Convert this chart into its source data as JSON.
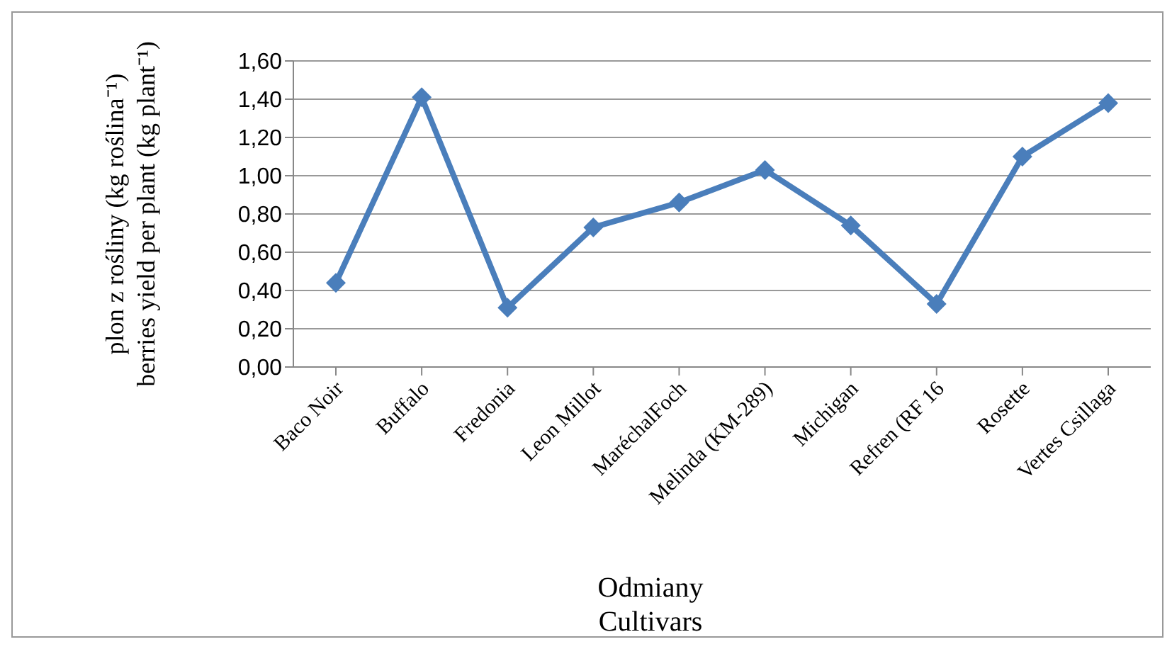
{
  "chart_data": {
    "type": "line",
    "categories": [
      "Baco Noir",
      "Buffalo",
      "Fredonia",
      "Leon Millot",
      "MaréchalFoch",
      "Melinda (KM-289)",
      "Michigan",
      "Refren (RF 16",
      "Rosette",
      "Vertes Csillaga"
    ],
    "series": [
      {
        "color": "#4a7ebb",
        "values": [
          0.44,
          1.41,
          0.31,
          0.73,
          0.86,
          1.03,
          0.74,
          0.33,
          1.1,
          1.38
        ]
      }
    ],
    "xlabel": "Odmiany\nCultivars",
    "ylabel": "plon z rośliny (kg roślina⁻¹)\nberries yield per plant (kg plant⁻¹)",
    "ylim": [
      0,
      1.6
    ],
    "yticks": [
      {
        "value": 0,
        "label": "0,00"
      },
      {
        "value": 0.2,
        "label": "0,20"
      },
      {
        "value": 0.4,
        "label": "0,40"
      },
      {
        "value": 0.6,
        "label": "0,60"
      },
      {
        "value": 0.8,
        "label": "0,80"
      },
      {
        "value": 1.0,
        "label": "1,00"
      },
      {
        "value": 1.2,
        "label": "1,20"
      },
      {
        "value": 1.4,
        "label": "1,40"
      },
      {
        "value": 1.6,
        "label": "1,60"
      }
    ],
    "grid": "y",
    "legend": false,
    "marker": "diamond",
    "line_style": "solid"
  }
}
